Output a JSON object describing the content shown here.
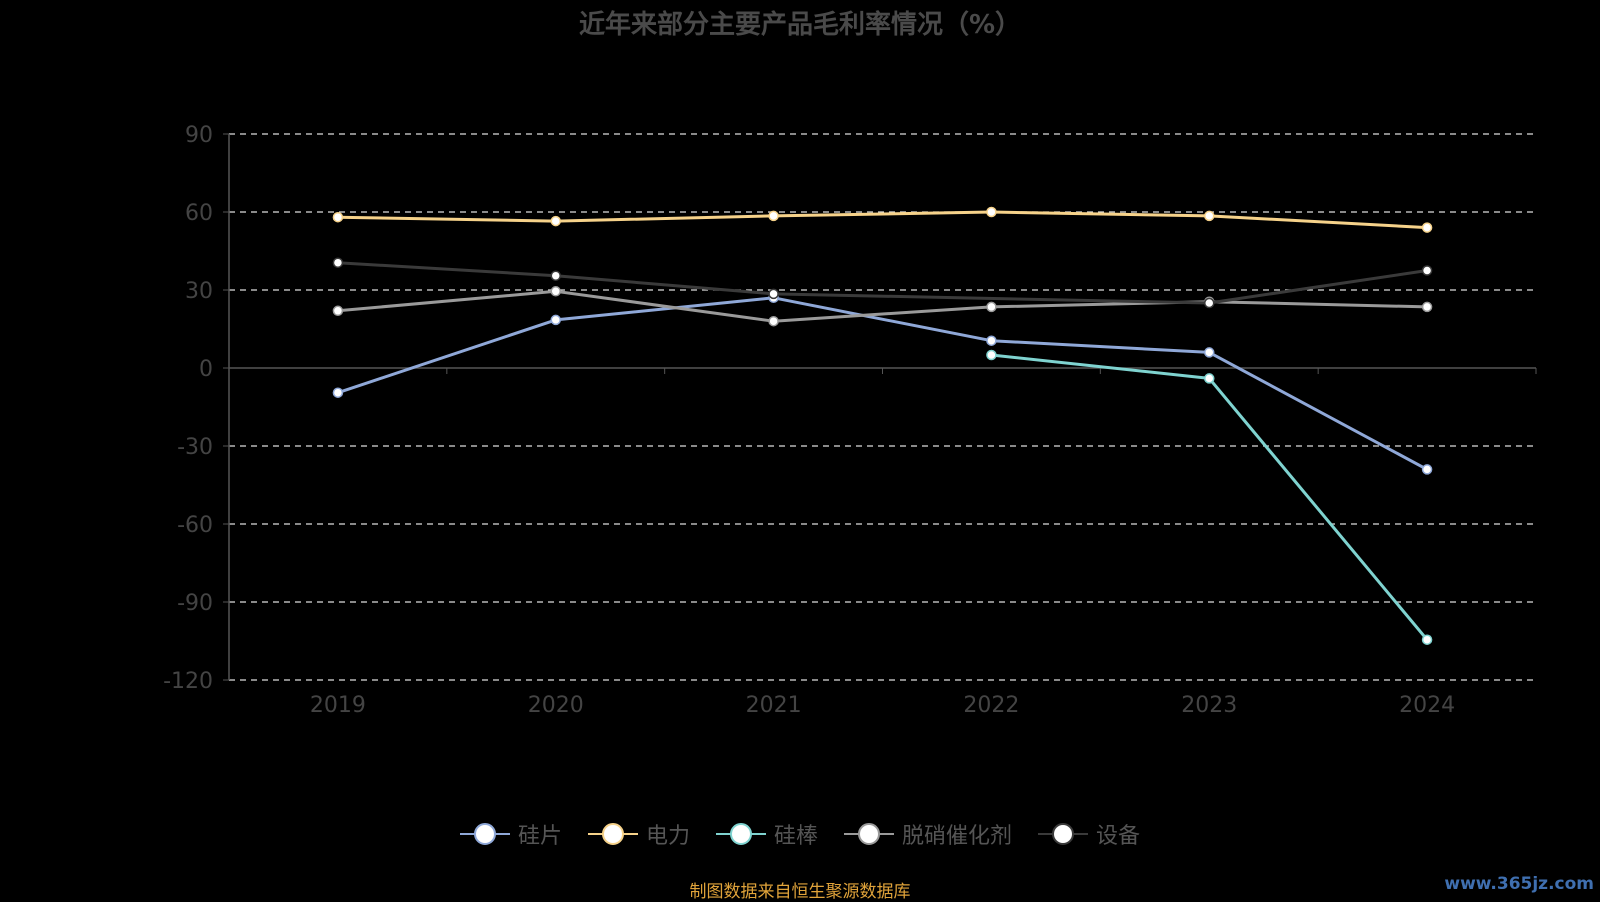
{
  "title": "近年来部分主要产品毛利率情况（%）",
  "source": "制图数据来自恒生聚源数据库",
  "watermark": "www.365jz.com",
  "chart_data": {
    "type": "line",
    "title": "近年来部分主要产品毛利率情况（%）",
    "categories": [
      "2019",
      "2020",
      "2021",
      "2022",
      "2023",
      "2024"
    ],
    "ylim": [
      -120,
      90
    ],
    "yticks": [
      90,
      60,
      30,
      0,
      -30,
      -60,
      -90,
      -120
    ],
    "grid": true,
    "legend_position": "bottom",
    "series": [
      {
        "name": "硅片",
        "color": "#8fa8d8",
        "values": [
          -9.5,
          18.5,
          27,
          10.5,
          6,
          -39
        ]
      },
      {
        "name": "电力",
        "color": "#f6d28a",
        "values": [
          58,
          56.5,
          58.5,
          60,
          58.5,
          54
        ]
      },
      {
        "name": "硅棒",
        "color": "#7fd3d0",
        "values": [
          null,
          null,
          null,
          5,
          -4,
          -104.5
        ]
      },
      {
        "name": "脱硝催化剂",
        "color": "#9a9a9a",
        "values": [
          22,
          29.5,
          18,
          23.5,
          25.5,
          23.5
        ]
      },
      {
        "name": "设备",
        "color": "#3a3a3a",
        "values": [
          40.5,
          35.5,
          28.5,
          null,
          25,
          37.5
        ]
      }
    ]
  }
}
